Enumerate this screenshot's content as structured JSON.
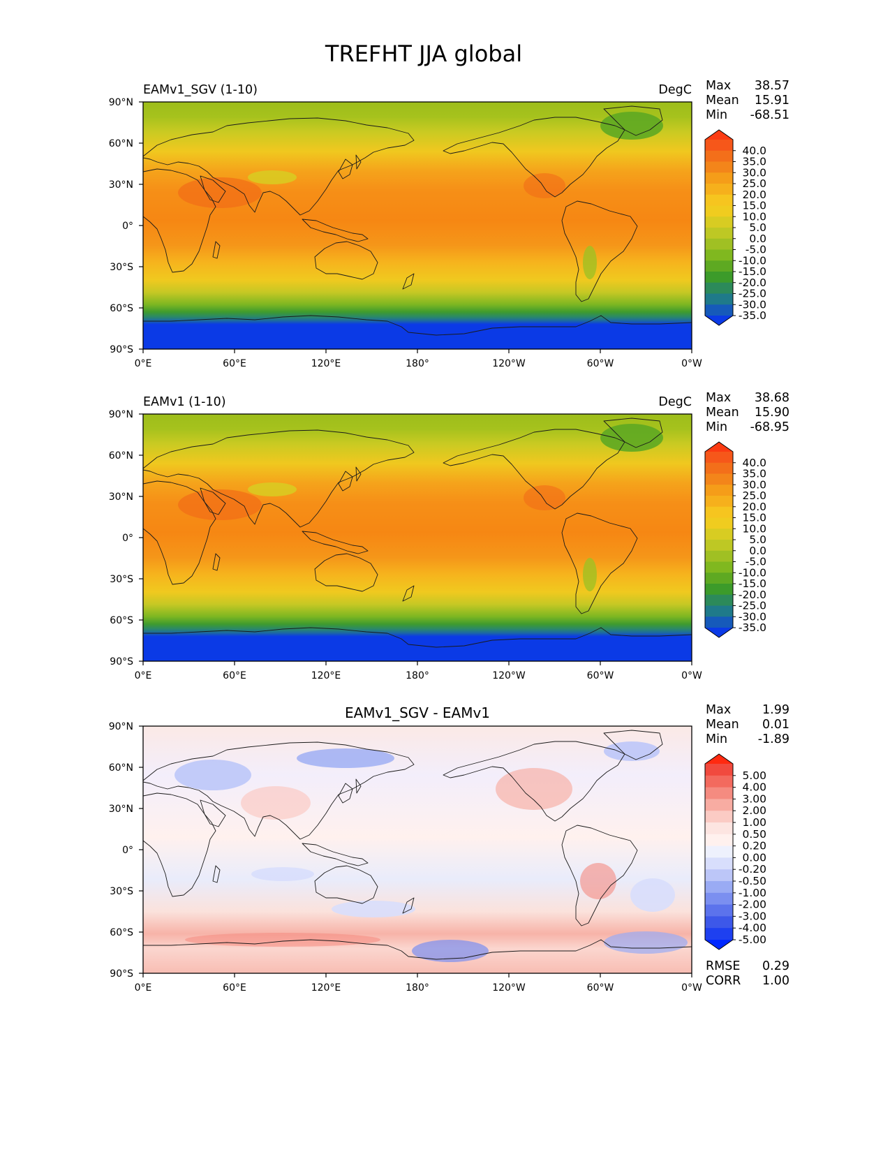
{
  "figure": {
    "title": "TREFHT JJA global",
    "lon_ticks": [
      "0°E",
      "60°E",
      "120°E",
      "180°",
      "120°W",
      "60°W",
      "0°W"
    ],
    "lat_ticks": [
      "90°N",
      "60°N",
      "30°N",
      "0°",
      "30°S",
      "60°S",
      "90°S"
    ]
  },
  "panels": [
    {
      "id": "sgv",
      "left_title": "EAMv1_SGV (1-10)",
      "center_title": "",
      "units": "DegC",
      "stats": [
        {
          "label": "Max",
          "value": "38.57"
        },
        {
          "label": "Mean",
          "value": "15.91"
        },
        {
          "label": "Min",
          "value": "-68.51"
        }
      ],
      "extra_stats": [],
      "colorbar": {
        "ticks": [
          "40.0",
          "35.0",
          "30.0",
          "25.0",
          "20.0",
          "15.0",
          "10.0",
          "5.0",
          "0.0",
          "-5.0",
          "-10.0",
          "-15.0",
          "-20.0",
          "-25.0",
          "-30.0",
          "-35.0"
        ],
        "colors": [
          "#fb3b12",
          "#f6571a",
          "#f36f1a",
          "#f3851a",
          "#f59d19",
          "#f6b01c",
          "#f6c51f",
          "#f0cc1f",
          "#d8cc22",
          "#bec824",
          "#a0c023",
          "#80b81f",
          "#5ea922",
          "#3c9b2a",
          "#2c8a5a",
          "#1f7a8a",
          "#165aba",
          "#0b3ae6"
        ]
      }
    },
    {
      "id": "eam",
      "left_title": "EAMv1 (1-10)",
      "center_title": "",
      "units": "DegC",
      "stats": [
        {
          "label": "Max",
          "value": "38.68"
        },
        {
          "label": "Mean",
          "value": "15.90"
        },
        {
          "label": "Min",
          "value": "-68.95"
        }
      ],
      "extra_stats": [],
      "colorbar": {
        "ticks": [
          "40.0",
          "35.0",
          "30.0",
          "25.0",
          "20.0",
          "15.0",
          "10.0",
          "5.0",
          "0.0",
          "-5.0",
          "-10.0",
          "-15.0",
          "-20.0",
          "-25.0",
          "-30.0",
          "-35.0"
        ],
        "colors": [
          "#fb3b12",
          "#f6571a",
          "#f36f1a",
          "#f3851a",
          "#f59d19",
          "#f6b01c",
          "#f6c51f",
          "#f0cc1f",
          "#d8cc22",
          "#bec824",
          "#a0c023",
          "#80b81f",
          "#5ea922",
          "#3c9b2a",
          "#2c8a5a",
          "#1f7a8a",
          "#165aba",
          "#0b3ae6"
        ]
      }
    },
    {
      "id": "diff",
      "left_title": "",
      "center_title": "EAMv1_SGV - EAMv1",
      "units": "",
      "stats": [
        {
          "label": "Max",
          "value": "1.99"
        },
        {
          "label": "Mean",
          "value": "0.01"
        },
        {
          "label": "Min",
          "value": "-1.89"
        }
      ],
      "extra_stats": [
        {
          "label": "RMSE",
          "value": "0.29"
        },
        {
          "label": "CORR",
          "value": "1.00"
        }
      ],
      "colorbar": {
        "ticks": [
          "5.00",
          "4.00",
          "3.00",
          "2.00",
          "1.00",
          "0.50",
          "0.20",
          "0.00",
          "-0.20",
          "-0.50",
          "-1.00",
          "-2.00",
          "-3.00",
          "-4.00",
          "-5.00"
        ],
        "colors": [
          "#ff2a10",
          "#f14a3e",
          "#f36a5e",
          "#f58b80",
          "#f8aca2",
          "#fbcbc4",
          "#fde5e1",
          "#fff1ee",
          "#eef1fd",
          "#d8defc",
          "#bcc6f8",
          "#9aabf4",
          "#7b8ff0",
          "#5c73ec",
          "#3d58e9",
          "#1e40f0",
          "#0028ff"
        ]
      }
    }
  ],
  "chart_data": [
    {
      "type": "heatmap",
      "title": "EAMv1_SGV (1-10)",
      "units": "DegC",
      "x_ticks": [
        "0°E",
        "60°E",
        "120°E",
        "180°",
        "120°W",
        "60°W",
        "0°W"
      ],
      "y_ticks": [
        "90°N",
        "60°N",
        "30°N",
        "0°",
        "30°S",
        "60°S",
        "90°S"
      ],
      "xlim": [
        0,
        360
      ],
      "ylim": [
        -90,
        90
      ],
      "levels": [
        -35,
        -30,
        -25,
        -20,
        -15,
        -10,
        -5,
        0,
        5,
        10,
        15,
        20,
        25,
        30,
        35,
        40
      ],
      "stats": {
        "max": 38.57,
        "mean": 15.91,
        "min": -68.51
      }
    },
    {
      "type": "heatmap",
      "title": "EAMv1 (1-10)",
      "units": "DegC",
      "x_ticks": [
        "0°E",
        "60°E",
        "120°E",
        "180°",
        "120°W",
        "60°W",
        "0°W"
      ],
      "y_ticks": [
        "90°N",
        "60°N",
        "30°N",
        "0°",
        "30°S",
        "60°S",
        "90°S"
      ],
      "xlim": [
        0,
        360
      ],
      "ylim": [
        -90,
        90
      ],
      "levels": [
        -35,
        -30,
        -25,
        -20,
        -15,
        -10,
        -5,
        0,
        5,
        10,
        15,
        20,
        25,
        30,
        35,
        40
      ],
      "stats": {
        "max": 38.68,
        "mean": 15.9,
        "min": -68.95
      }
    },
    {
      "type": "heatmap",
      "title": "EAMv1_SGV - EAMv1",
      "x_ticks": [
        "0°E",
        "60°E",
        "120°E",
        "180°",
        "120°W",
        "60°W",
        "0°W"
      ],
      "y_ticks": [
        "90°N",
        "60°N",
        "30°N",
        "0°",
        "30°S",
        "60°S",
        "90°S"
      ],
      "xlim": [
        0,
        360
      ],
      "ylim": [
        -90,
        90
      ],
      "levels": [
        -5,
        -4,
        -3,
        -2,
        -1,
        -0.5,
        -0.2,
        0,
        0.2,
        0.5,
        1,
        2,
        3,
        4,
        5
      ],
      "stats": {
        "max": 1.99,
        "mean": 0.01,
        "min": -1.89,
        "rmse": 0.29,
        "corr": 1.0
      }
    }
  ]
}
